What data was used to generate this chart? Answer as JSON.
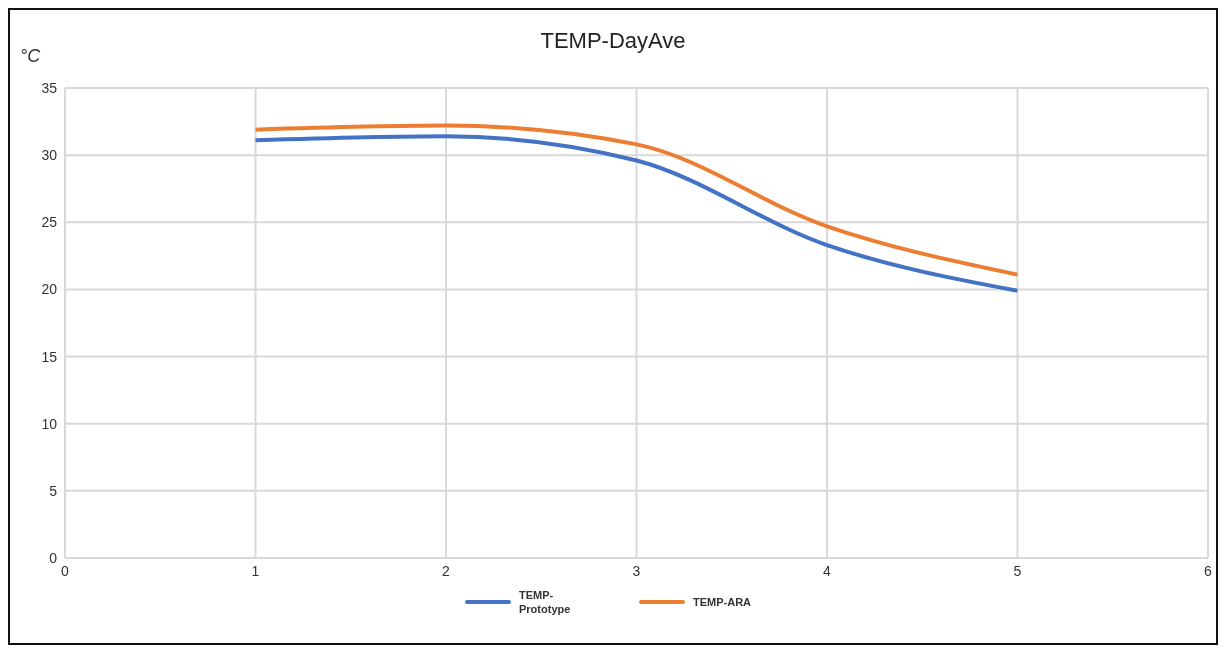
{
  "chart_data": {
    "type": "line",
    "title": "TEMP-DayAve",
    "ylabel": "°C",
    "x": [
      1,
      2,
      3,
      4,
      5
    ],
    "series": [
      {
        "name": "TEMP-Prototype",
        "color": "#4472c4",
        "values": [
          31.1,
          31.4,
          29.6,
          23.3,
          19.9
        ]
      },
      {
        "name": "TEMP-ARA",
        "color": "#ed7d31",
        "values": [
          31.9,
          32.2,
          30.8,
          24.7,
          21.1
        ]
      }
    ],
    "xlim": [
      0,
      6
    ],
    "xticks": [
      0,
      1,
      2,
      3,
      4,
      5,
      6
    ],
    "ylim": [
      0,
      35
    ],
    "yticks": [
      0,
      5,
      10,
      15,
      20,
      25,
      30,
      35
    ],
    "grid": true,
    "legend": "bottom",
    "marker": "none",
    "line_style": "solid"
  }
}
